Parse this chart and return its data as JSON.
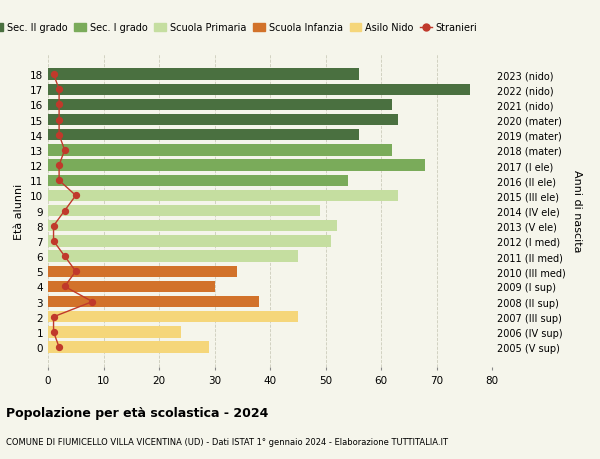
{
  "ages": [
    18,
    17,
    16,
    15,
    14,
    13,
    12,
    11,
    10,
    9,
    8,
    7,
    6,
    5,
    4,
    3,
    2,
    1,
    0
  ],
  "years_labels": [
    "2005 (V sup)",
    "2006 (IV sup)",
    "2007 (III sup)",
    "2008 (II sup)",
    "2009 (I sup)",
    "2010 (III med)",
    "2011 (II med)",
    "2012 (I med)",
    "2013 (V ele)",
    "2014 (IV ele)",
    "2015 (III ele)",
    "2016 (II ele)",
    "2017 (I ele)",
    "2018 (mater)",
    "2019 (mater)",
    "2020 (mater)",
    "2021 (nido)",
    "2022 (nido)",
    "2023 (nido)"
  ],
  "bar_values": [
    56,
    76,
    62,
    63,
    56,
    62,
    68,
    54,
    63,
    49,
    52,
    51,
    45,
    34,
    30,
    38,
    45,
    24,
    29
  ],
  "bar_colors": [
    "#4a7040",
    "#4a7040",
    "#4a7040",
    "#4a7040",
    "#4a7040",
    "#7aab5a",
    "#7aab5a",
    "#7aab5a",
    "#c5dea0",
    "#c5dea0",
    "#c5dea0",
    "#c5dea0",
    "#c5dea0",
    "#d2722a",
    "#d2722a",
    "#d2722a",
    "#f5d67a",
    "#f5d67a",
    "#f5d67a"
  ],
  "stranieri_values": [
    1,
    2,
    2,
    2,
    2,
    3,
    2,
    2,
    5,
    3,
    1,
    1,
    3,
    5,
    3,
    8,
    1,
    1,
    2
  ],
  "title": "Popolazione per età scolastica - 2024",
  "subtitle": "COMUNE DI FIUMICELLO VILLA VICENTINA (UD) - Dati ISTAT 1° gennaio 2024 - Elaborazione TUTTITALIA.IT",
  "xlabel_left": "Età alunni",
  "ylabel_right": "Anni di nascita",
  "xlim": [
    0,
    80
  ],
  "xticks": [
    0,
    10,
    20,
    30,
    40,
    50,
    60,
    70,
    80
  ],
  "legend_labels": [
    "Sec. II grado",
    "Sec. I grado",
    "Scuola Primaria",
    "Scuola Infanzia",
    "Asilo Nido",
    "Stranieri"
  ],
  "legend_colors": [
    "#4a7040",
    "#7aab5a",
    "#c5dea0",
    "#d2722a",
    "#f5d67a",
    "#c0392b"
  ],
  "stranieri_color": "#c0392b",
  "bg_color": "#f5f5eb",
  "grid_color": "#ccccbb"
}
